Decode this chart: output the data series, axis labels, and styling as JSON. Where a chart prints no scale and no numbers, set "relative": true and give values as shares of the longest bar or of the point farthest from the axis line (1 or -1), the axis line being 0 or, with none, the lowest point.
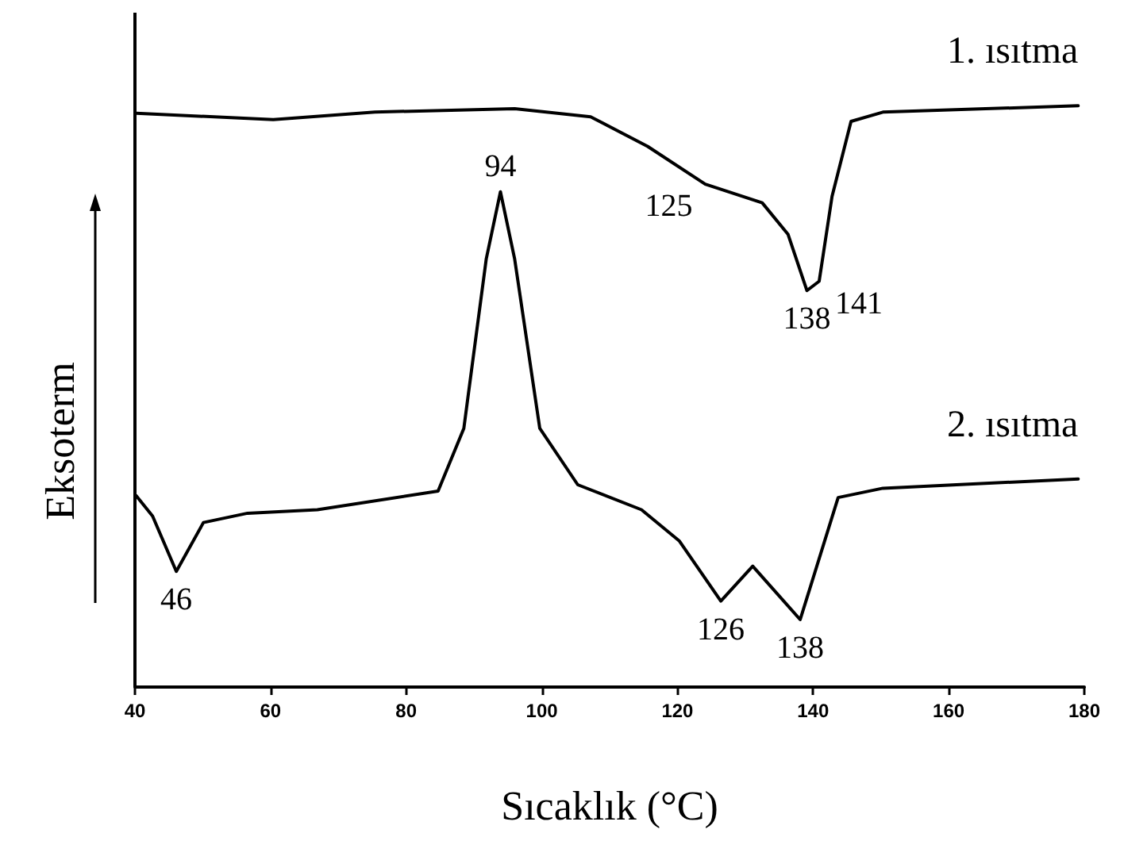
{
  "chart_data": {
    "type": "line",
    "relative": true,
    "xlabel": "Sıcaklık (°C)",
    "ylabel": "Eksoterm",
    "xlim": [
      40,
      180
    ],
    "xticks": [
      40,
      60,
      80,
      100,
      120,
      140,
      160,
      180
    ],
    "grid": false,
    "legend": false,
    "marker": "none",
    "line_style": "solid",
    "series": [
      {
        "name": "1. ısıtma",
        "color": "#000000",
        "x": [
          40.2,
          60.4,
          75.4,
          96.0,
          107.2,
          115.6,
          124.1,
          132.5,
          136.3,
          139.1,
          140.9,
          142.8,
          145.6,
          150.3,
          179.1
        ],
        "values": [
          0.987,
          0.976,
          0.989,
          0.995,
          0.981,
          0.93,
          0.865,
          0.833,
          0.779,
          0.682,
          0.698,
          0.844,
          0.973,
          0.989,
          1.0
        ]
      },
      {
        "name": "2. ısıtma",
        "color": "#000000",
        "x": [
          40.2,
          42.6,
          46.1,
          50.1,
          56.6,
          66.9,
          84.7,
          88.5,
          91.8,
          93.9,
          96.0,
          99.7,
          105.3,
          114.7,
          120.3,
          126.4,
          131.1,
          138.1,
          143.7,
          150.3,
          179.1
        ],
        "values": [
          0.329,
          0.294,
          0.199,
          0.283,
          0.299,
          0.305,
          0.337,
          0.445,
          0.736,
          0.852,
          0.736,
          0.445,
          0.348,
          0.305,
          0.251,
          0.148,
          0.208,
          0.116,
          0.326,
          0.342,
          0.358
        ]
      }
    ],
    "annotations": [
      {
        "text": "125",
        "x": 124.1,
        "y": 0.865
      },
      {
        "text": "138",
        "x": 139.1,
        "y": 0.682
      },
      {
        "text": "141",
        "x": 140.9,
        "y": 0.698
      },
      {
        "text": "94",
        "x": 93.9,
        "y": 0.852
      },
      {
        "text": "46",
        "x": 46.1,
        "y": 0.199
      },
      {
        "text": "126",
        "x": 126.4,
        "y": 0.148
      },
      {
        "text": "138",
        "x": 138.1,
        "y": 0.116
      }
    ]
  }
}
